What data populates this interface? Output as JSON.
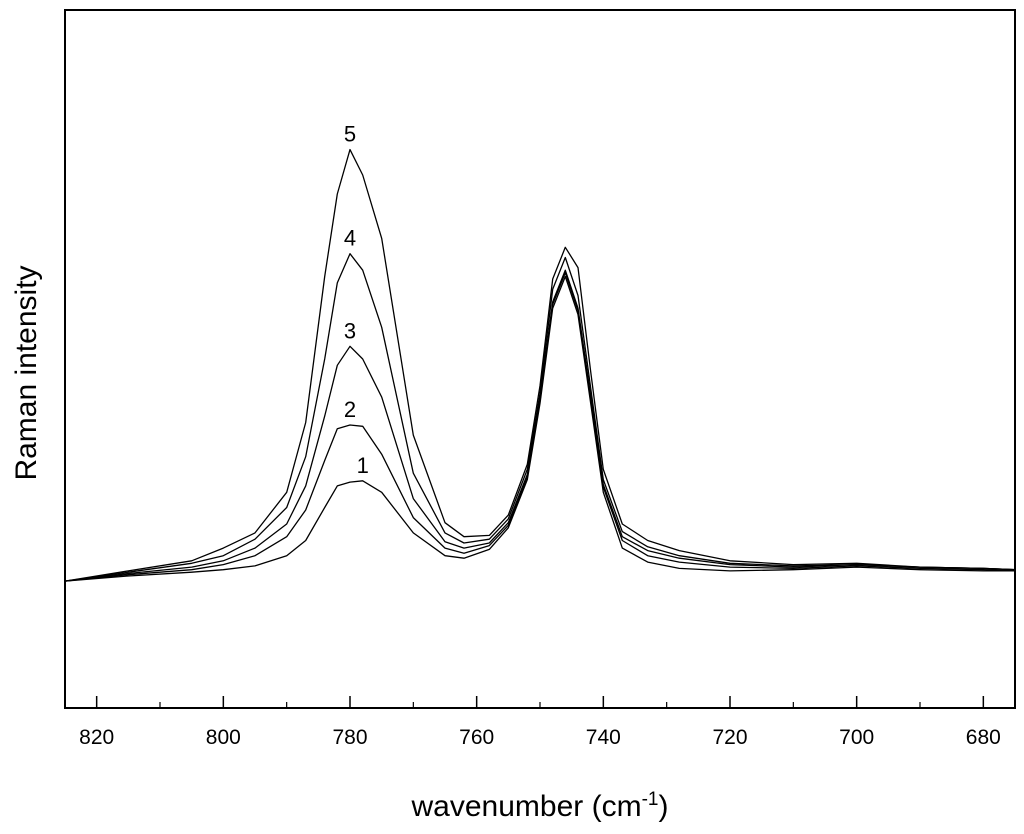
{
  "chart_data": {
    "type": "line",
    "title": "",
    "xlabel": "wavenumber (cm",
    "xlabel_superscript": "-1",
    "xlabel_suffix": ")",
    "ylabel": "Raman intensity",
    "xlim": [
      825,
      675
    ],
    "ylim": [
      -10,
      45
    ],
    "x_reversed": true,
    "y_ticks_shown": false,
    "x_ticks": [
      820,
      800,
      780,
      760,
      740,
      720,
      700,
      680
    ],
    "x_tick_labels": [
      "820",
      "800",
      "780",
      "760",
      "740",
      "720",
      "700",
      "680"
    ],
    "grid": false,
    "x": [
      825,
      815,
      805,
      800,
      795,
      790,
      787,
      784,
      782,
      780,
      778,
      775,
      770,
      765,
      762,
      758,
      755,
      752,
      750,
      748,
      746,
      744,
      742,
      740,
      737,
      733,
      728,
      720,
      710,
      700,
      690,
      680,
      675
    ],
    "series": [
      {
        "name": "1",
        "values": [
          0,
          0.4,
          0.7,
          0.9,
          1.2,
          2.0,
          3.2,
          5.8,
          7.5,
          7.8,
          7.9,
          7.0,
          3.8,
          2.0,
          1.8,
          2.5,
          4.2,
          8.0,
          14.0,
          21.5,
          24.0,
          21.0,
          14.0,
          7.0,
          2.6,
          1.5,
          1.0,
          0.8,
          0.9,
          1.1,
          0.9,
          0.8,
          0.8
        ]
      },
      {
        "name": "2",
        "values": [
          0,
          0.5,
          0.9,
          1.3,
          2.0,
          3.5,
          5.6,
          9.5,
          12.0,
          12.3,
          12.2,
          10.0,
          5.0,
          2.6,
          2.2,
          2.8,
          4.4,
          8.2,
          14.2,
          21.8,
          24.3,
          21.3,
          14.4,
          7.4,
          3.2,
          2.0,
          1.5,
          1.1,
          1.0,
          1.2,
          1.0,
          0.9,
          0.8
        ]
      },
      {
        "name": "3",
        "values": [
          0,
          0.6,
          1.1,
          1.6,
          2.6,
          4.5,
          7.5,
          13.0,
          17.0,
          18.5,
          17.5,
          14.5,
          6.5,
          3.1,
          2.6,
          3.0,
          4.6,
          8.4,
          14.4,
          22.0,
          24.5,
          21.5,
          14.6,
          7.6,
          3.5,
          2.4,
          1.8,
          1.3,
          1.1,
          1.3,
          1.1,
          1.0,
          0.9
        ]
      },
      {
        "name": "4",
        "values": [
          0,
          0.7,
          1.4,
          2.0,
          3.3,
          5.8,
          9.8,
          17.5,
          23.5,
          25.8,
          24.5,
          20.0,
          8.5,
          3.8,
          3.0,
          3.3,
          4.9,
          8.8,
          14.8,
          23.0,
          25.5,
          22.5,
          15.2,
          8.0,
          3.9,
          2.7,
          2.0,
          1.4,
          1.2,
          1.3,
          1.1,
          1.0,
          0.9
        ]
      },
      {
        "name": "5",
        "values": [
          0,
          0.8,
          1.6,
          2.6,
          3.8,
          7.0,
          12.5,
          24.0,
          30.5,
          34.0,
          32.0,
          27.0,
          11.5,
          4.6,
          3.5,
          3.6,
          5.2,
          9.2,
          15.4,
          23.8,
          26.3,
          24.7,
          16.5,
          8.8,
          4.5,
          3.2,
          2.4,
          1.6,
          1.3,
          1.4,
          1.1,
          1.0,
          0.9
        ]
      }
    ],
    "annotations": [
      "1",
      "2",
      "3",
      "4",
      "5"
    ]
  }
}
